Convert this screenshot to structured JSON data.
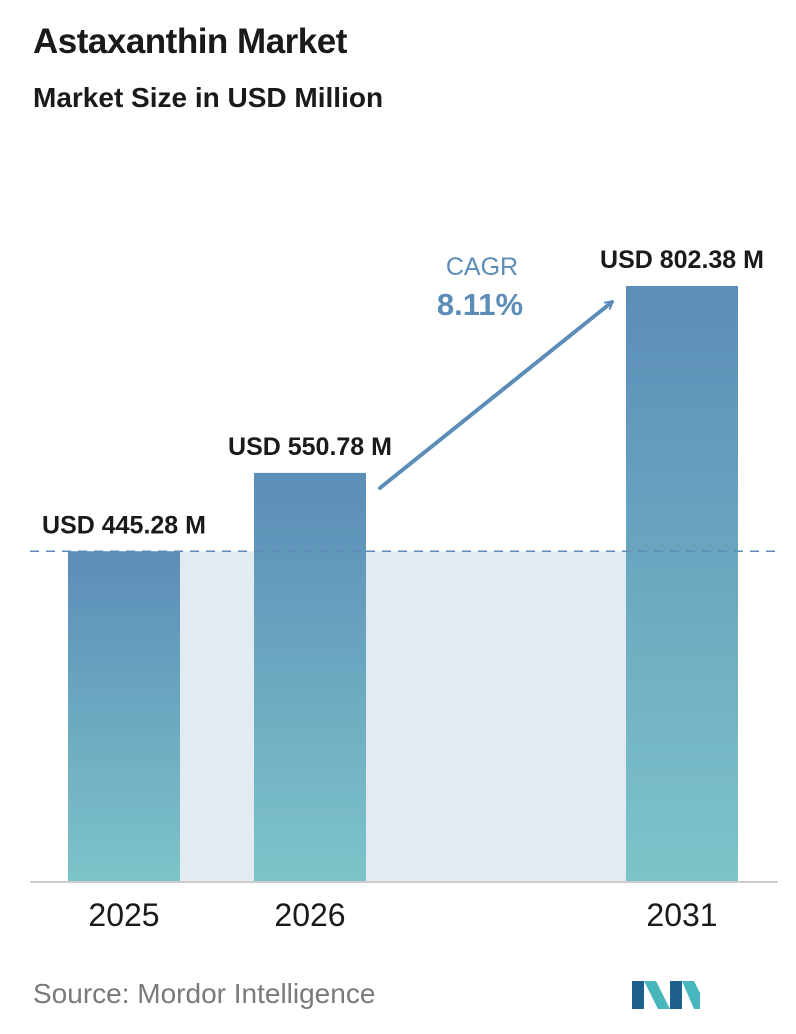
{
  "header": {
    "title": "Astaxanthin Market",
    "subtitle": "Market Size in USD Million"
  },
  "chart_data": {
    "type": "bar",
    "categories": [
      "2025",
      "2026",
      "2031"
    ],
    "values": [
      445.28,
      550.78,
      802.38
    ],
    "value_labels": [
      "USD 445.28 M",
      "USD 550.78 M",
      "USD 802.38 M"
    ],
    "title": "Astaxanthin Market",
    "subtitle": "Market Size in USD Million",
    "xlabel": "",
    "ylabel": "",
    "grid": false,
    "legend": "none",
    "annotations": [
      {
        "label": "CAGR",
        "value": "8.11%"
      }
    ],
    "reference_line": {
      "value": 445.28,
      "style": "dashed"
    }
  },
  "colors": {
    "bar_top": "#5b8db8",
    "bar_bottom": "#7dc4c9",
    "shaded_area": "#e2eaf2",
    "reference_line": "#5b8db8",
    "arrow": "#5b8db8",
    "cagr_text": "#5b8db8",
    "axis": "#cccccc",
    "logo_dark": "#1e5f8c",
    "logo_light": "#48b6bd"
  },
  "footer": {
    "source": "Source:  Mordor Intelligence",
    "logo_icon": "mordor-intelligence-logo-icon"
  }
}
